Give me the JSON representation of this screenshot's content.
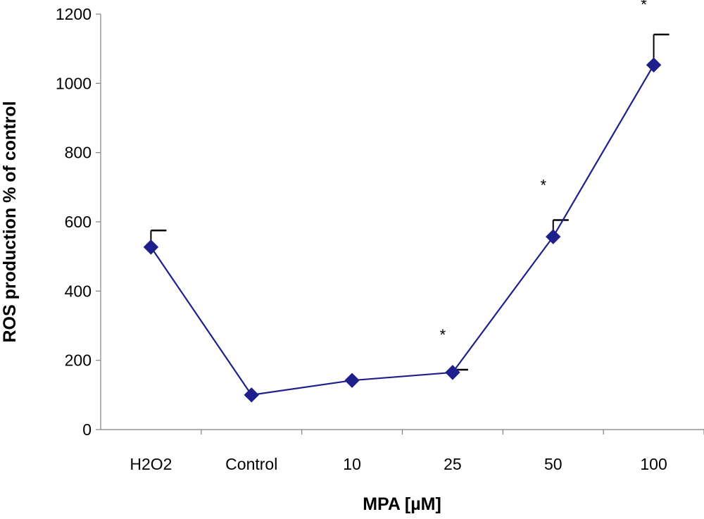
{
  "chart_data": {
    "type": "line",
    "title": "",
    "xlabel": "MPA [µM]",
    "ylabel": "ROS production % of control",
    "categories": [
      "H2O2",
      "Control",
      "10",
      "25",
      "50",
      "100"
    ],
    "series": [
      {
        "values": [
          527,
          100,
          142,
          165,
          557,
          1053
        ],
        "error_upper": [
          48,
          0,
          0,
          8,
          48,
          88
        ],
        "color": "#1f1f8c",
        "marker": "diamond"
      }
    ],
    "significance": [
      {
        "category": "25",
        "label": "*"
      },
      {
        "category": "50",
        "label": "*"
      },
      {
        "category": "100",
        "label": "*"
      }
    ],
    "ylim": [
      0,
      1200
    ],
    "yticks": [
      0,
      200,
      400,
      600,
      800,
      1000,
      1200
    ],
    "grid": false,
    "legend": "none"
  }
}
